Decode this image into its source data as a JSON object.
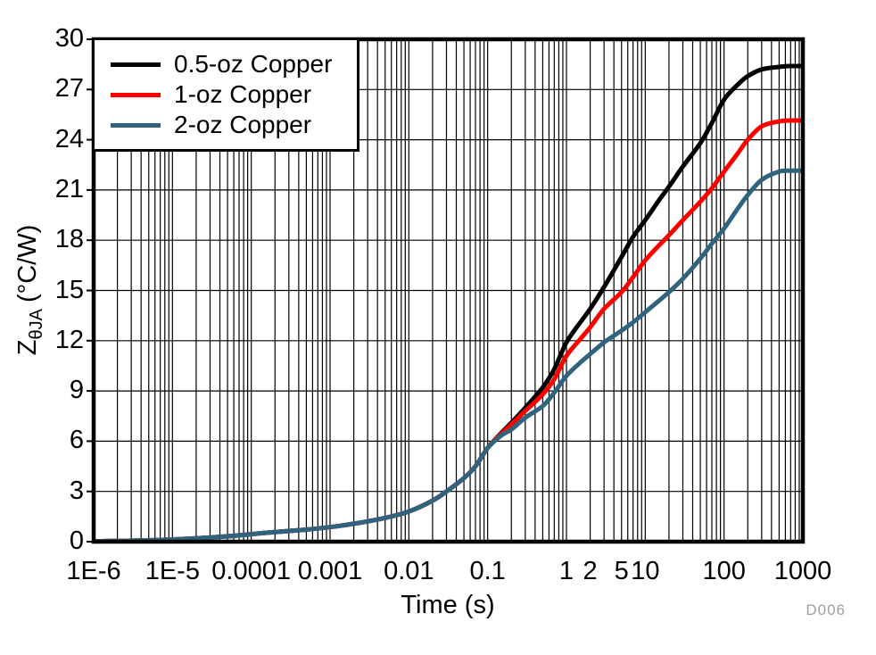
{
  "chart_data": {
    "type": "line",
    "title": "",
    "xlabel": "Time (s)",
    "ylabel": {
      "main": "Z",
      "sub": "θJA",
      "unit": "(°C/W)",
      "full": "ZθJA (°C/W)"
    },
    "figure_id": "D006",
    "x_axis": {
      "scale": "log",
      "min": 1e-06,
      "max": 1000,
      "ticks": [
        {
          "t": 1e-06,
          "label": "1E-6"
        },
        {
          "t": 1e-05,
          "label": "1E-5"
        },
        {
          "t": 0.0001,
          "label": "0.0001"
        },
        {
          "t": 0.001,
          "label": "0.001"
        },
        {
          "t": 0.01,
          "label": "0.01"
        },
        {
          "t": 0.1,
          "label": "0.1"
        },
        {
          "t": 1,
          "label": "1"
        },
        {
          "t": 2,
          "label": "2"
        },
        {
          "t": 5,
          "label": "5"
        },
        {
          "t": 10,
          "label": "10"
        },
        {
          "t": 100,
          "label": "100"
        },
        {
          "t": 1000,
          "label": "1000"
        }
      ]
    },
    "y_axis": {
      "min": 0,
      "max": 30,
      "step": 3,
      "tick_labels": [
        "0",
        "3",
        "6",
        "9",
        "12",
        "15",
        "18",
        "21",
        "24",
        "27",
        "30"
      ]
    },
    "grid": {
      "color": "#000000",
      "vertical_minor_log": true,
      "horizontal_major_only": true
    },
    "legend": {
      "position": "top-left"
    },
    "colors": {
      "frame": "#000000",
      "watermark": "#9C9EA0",
      "background": "#FFFFFF"
    },
    "series": [
      {
        "name": "0.5-oz Copper",
        "color": "#000000",
        "points": [
          [
            1e-06,
            0.02
          ],
          [
            2e-06,
            0.04
          ],
          [
            5e-06,
            0.08
          ],
          [
            1e-05,
            0.13
          ],
          [
            2e-05,
            0.2
          ],
          [
            5e-05,
            0.32
          ],
          [
            0.0001,
            0.45
          ],
          [
            0.0002,
            0.57
          ],
          [
            0.0005,
            0.72
          ],
          [
            0.001,
            0.87
          ],
          [
            0.002,
            1.07
          ],
          [
            0.005,
            1.42
          ],
          [
            0.01,
            1.8
          ],
          [
            0.02,
            2.45
          ],
          [
            0.03,
            3.0
          ],
          [
            0.05,
            3.8
          ],
          [
            0.07,
            4.5
          ],
          [
            0.1,
            5.6
          ],
          [
            0.15,
            6.5
          ],
          [
            0.2,
            7.1
          ],
          [
            0.3,
            8.0
          ],
          [
            0.5,
            9.2
          ],
          [
            0.7,
            10.3
          ],
          [
            1,
            11.9
          ],
          [
            1.5,
            13.1
          ],
          [
            2,
            13.9
          ],
          [
            3,
            15.2
          ],
          [
            5,
            17.0
          ],
          [
            7,
            18.2
          ],
          [
            10,
            19.2
          ],
          [
            15,
            20.4
          ],
          [
            20,
            21.2
          ],
          [
            30,
            22.4
          ],
          [
            50,
            23.8
          ],
          [
            70,
            25.0
          ],
          [
            100,
            26.4
          ],
          [
            150,
            27.3
          ],
          [
            200,
            27.8
          ],
          [
            300,
            28.2
          ],
          [
            500,
            28.35
          ],
          [
            700,
            28.4
          ],
          [
            1000,
            28.4
          ]
        ]
      },
      {
        "name": "1-oz Copper",
        "color": "#FF0000",
        "points": [
          [
            1e-06,
            0.02
          ],
          [
            2e-06,
            0.04
          ],
          [
            5e-06,
            0.08
          ],
          [
            1e-05,
            0.13
          ],
          [
            2e-05,
            0.2
          ],
          [
            5e-05,
            0.32
          ],
          [
            0.0001,
            0.45
          ],
          [
            0.0002,
            0.57
          ],
          [
            0.0005,
            0.72
          ],
          [
            0.001,
            0.87
          ],
          [
            0.002,
            1.07
          ],
          [
            0.005,
            1.42
          ],
          [
            0.01,
            1.8
          ],
          [
            0.02,
            2.45
          ],
          [
            0.03,
            3.0
          ],
          [
            0.05,
            3.8
          ],
          [
            0.07,
            4.5
          ],
          [
            0.1,
            5.6
          ],
          [
            0.15,
            6.45
          ],
          [
            0.2,
            7.0
          ],
          [
            0.3,
            7.8
          ],
          [
            0.5,
            8.8
          ],
          [
            0.7,
            9.7
          ],
          [
            1,
            11.1
          ],
          [
            1.5,
            12.1
          ],
          [
            2,
            12.8
          ],
          [
            3,
            13.9
          ],
          [
            5,
            14.9
          ],
          [
            7,
            15.8
          ],
          [
            10,
            16.8
          ],
          [
            15,
            17.7
          ],
          [
            20,
            18.3
          ],
          [
            30,
            19.2
          ],
          [
            50,
            20.3
          ],
          [
            70,
            21.1
          ],
          [
            100,
            22.1
          ],
          [
            150,
            23.2
          ],
          [
            200,
            24.0
          ],
          [
            300,
            24.8
          ],
          [
            500,
            25.1
          ],
          [
            700,
            25.15
          ],
          [
            1000,
            25.15
          ]
        ]
      },
      {
        "name": "2-oz Copper",
        "color": "#30637E",
        "points": [
          [
            1e-06,
            0.02
          ],
          [
            2e-06,
            0.04
          ],
          [
            5e-06,
            0.08
          ],
          [
            1e-05,
            0.13
          ],
          [
            2e-05,
            0.2
          ],
          [
            5e-05,
            0.32
          ],
          [
            0.0001,
            0.45
          ],
          [
            0.0002,
            0.57
          ],
          [
            0.0005,
            0.72
          ],
          [
            0.001,
            0.87
          ],
          [
            0.002,
            1.07
          ],
          [
            0.005,
            1.42
          ],
          [
            0.01,
            1.8
          ],
          [
            0.02,
            2.45
          ],
          [
            0.03,
            3.0
          ],
          [
            0.05,
            3.8
          ],
          [
            0.07,
            4.5
          ],
          [
            0.1,
            5.6
          ],
          [
            0.15,
            6.35
          ],
          [
            0.2,
            6.7
          ],
          [
            0.3,
            7.4
          ],
          [
            0.5,
            8.1
          ],
          [
            0.7,
            8.9
          ],
          [
            1,
            9.9
          ],
          [
            1.5,
            10.7
          ],
          [
            2,
            11.2
          ],
          [
            3,
            11.9
          ],
          [
            5,
            12.6
          ],
          [
            7,
            13.1
          ],
          [
            10,
            13.7
          ],
          [
            15,
            14.4
          ],
          [
            20,
            14.9
          ],
          [
            30,
            15.7
          ],
          [
            50,
            16.9
          ],
          [
            70,
            17.8
          ],
          [
            100,
            18.7
          ],
          [
            150,
            19.9
          ],
          [
            200,
            20.7
          ],
          [
            300,
            21.6
          ],
          [
            500,
            22.1
          ],
          [
            700,
            22.15
          ],
          [
            1000,
            22.15
          ]
        ]
      }
    ]
  }
}
